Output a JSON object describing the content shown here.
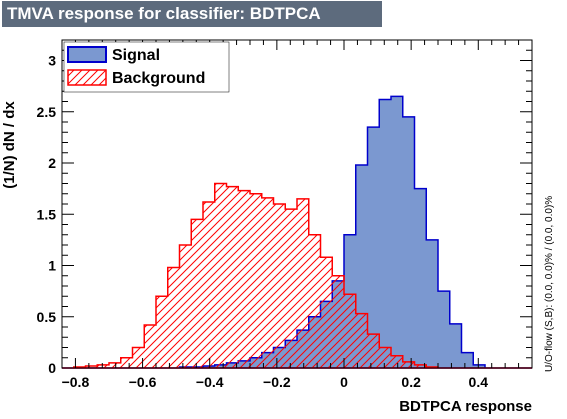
{
  "chart_data": {
    "type": "histogram",
    "title": "TMVA response for classifier: BDTPCA",
    "xlabel": "BDTPCA response",
    "ylabel": "(1/N) dN / dx",
    "xlim": [
      -0.84,
      0.56
    ],
    "ylim": [
      0,
      3.2
    ],
    "xticks": [
      -0.8,
      -0.6,
      -0.4,
      -0.2,
      0,
      0.2,
      0.4
    ],
    "xtick_labels": [
      "−0.8",
      "−0.6",
      "−0.4",
      "−0.2",
      "0",
      "0.2",
      "0.4"
    ],
    "yticks": [
      0,
      0.5,
      1,
      1.5,
      2,
      2.5,
      3
    ],
    "ytick_labels": [
      "0",
      "0.5",
      "1",
      "1.5",
      "2",
      "2.5",
      "3"
    ],
    "bin_edges_start": -0.84,
    "bin_width": 0.035,
    "series": [
      {
        "name": "Signal",
        "style": "filled",
        "fill": "#7b98d0",
        "line": "#0000cc",
        "values": [
          0,
          0,
          0,
          0,
          0,
          0,
          0,
          0,
          0,
          0,
          0.01,
          0.01,
          0.02,
          0.03,
          0.05,
          0.07,
          0.1,
          0.15,
          0.2,
          0.27,
          0.37,
          0.5,
          0.65,
          0.85,
          1.3,
          1.98,
          2.35,
          2.62,
          2.65,
          2.45,
          1.75,
          1.25,
          0.75,
          0.43,
          0.15,
          0.03,
          0,
          0,
          0,
          0
        ]
      },
      {
        "name": "Background",
        "style": "hatched",
        "fill": "#ff4040",
        "line": "#ff0000",
        "values": [
          0,
          0.01,
          0.02,
          0.03,
          0.05,
          0.1,
          0.2,
          0.42,
          0.7,
          0.98,
          1.2,
          1.45,
          1.62,
          1.8,
          1.77,
          1.73,
          1.7,
          1.66,
          1.6,
          1.55,
          1.65,
          1.3,
          1.08,
          0.9,
          0.72,
          0.53,
          0.33,
          0.2,
          0.12,
          0.06,
          0.03,
          0.01,
          0,
          0,
          0,
          0,
          0,
          0,
          0,
          0
        ]
      }
    ],
    "legend": {
      "position": "top-left",
      "entries": [
        "Signal",
        "Background"
      ]
    },
    "side_note": "U/O-flow (S,B): (0.0, 0.0)% / (0.0, 0.0)%"
  }
}
